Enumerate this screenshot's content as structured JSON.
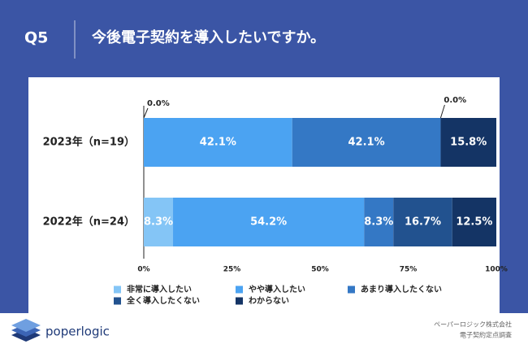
{
  "header": {
    "label": "Q5"
  },
  "chart_data": {
    "type": "stacked-bar-horizontal",
    "title": "今後電子契約を導入したいですか。",
    "categories": [
      "2023年（n=19）",
      "2022年（n=24）"
    ],
    "series": [
      {
        "name": "非常に導入したい",
        "color": "#84c5f6",
        "values": [
          0.0,
          8.3
        ],
        "value_labels": [
          "0.0%",
          "8.3%"
        ]
      },
      {
        "name": "やや導入したい",
        "color": "#4ba3f2",
        "values": [
          42.1,
          54.2
        ],
        "value_labels": [
          "42.1%",
          "54.2%"
        ]
      },
      {
        "name": "あまり導入したくない",
        "color": "#3478c5",
        "values": [
          42.1,
          8.3
        ],
        "value_labels": [
          "42.1%",
          "8.3%"
        ]
      },
      {
        "name": "全く導入したくない",
        "color": "#22528f",
        "values": [
          0.0,
          16.7
        ],
        "value_labels": [
          "0.0%",
          "16.7%"
        ]
      },
      {
        "name": "わからない",
        "color": "#143465",
        "values": [
          15.8,
          12.5
        ],
        "value_labels": [
          "15.8%",
          "12.5%"
        ]
      }
    ],
    "xlim": [
      0,
      100
    ],
    "xticks": [
      {
        "value": 0,
        "label": "0%"
      },
      {
        "value": 25,
        "label": "25%"
      },
      {
        "value": 50,
        "label": "50%"
      },
      {
        "value": 75,
        "label": "75%"
      },
      {
        "value": 100,
        "label": "100%"
      }
    ],
    "grid": false
  },
  "footer": {
    "brand": "poperlogic",
    "company": "ペーパーロジック株式会社",
    "survey": "電子契約定点調査"
  }
}
